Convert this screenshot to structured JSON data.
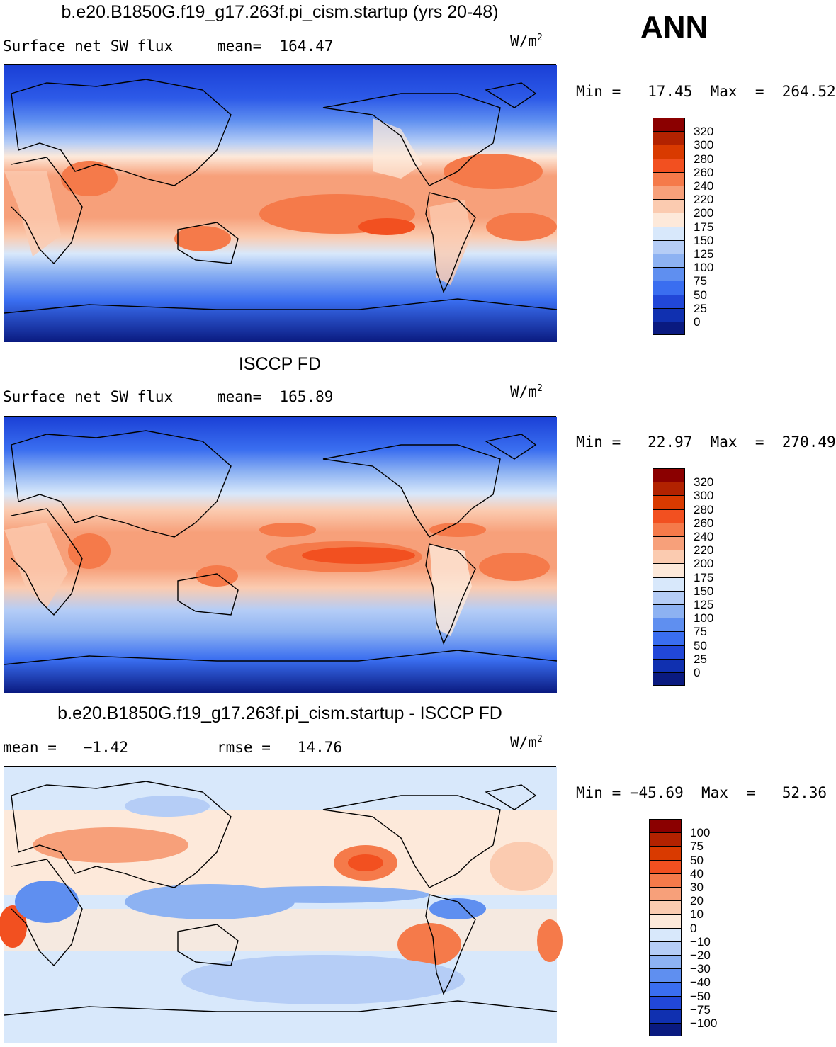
{
  "season": "ANN",
  "panels": [
    {
      "title": "b.e20.B1850G.f19_g17.263f.pi_cism.startup (yrs 20-48)",
      "left_text": "Surface net SW flux",
      "right_text": "mean=  164.47",
      "units_base": "W/m",
      "units_exp": "2",
      "minmax": "Min =   17.45  Max  =  264.52",
      "levels": [
        "320",
        "300",
        "280",
        "260",
        "240",
        "220",
        "200",
        "175",
        "150",
        "125",
        "100",
        "75",
        "50",
        "25",
        "0"
      ],
      "colors": [
        "#8b0000",
        "#b22200",
        "#d93a00",
        "#f25020",
        "#f57a4a",
        "#f7a07a",
        "#fbcbb0",
        "#fde9da",
        "#d8e8fb",
        "#b5cdf6",
        "#8db2f2",
        "#5f8ff0",
        "#3a6ef0",
        "#2147d8",
        "#1030b0",
        "#0a1a80"
      ]
    },
    {
      "title": "ISCCP FD",
      "left_text": "Surface net SW flux",
      "right_text": "mean=  165.89",
      "units_base": "W/m",
      "units_exp": "2",
      "minmax": "Min =   22.97  Max  =  270.49",
      "levels": [
        "320",
        "300",
        "280",
        "260",
        "240",
        "220",
        "200",
        "175",
        "150",
        "125",
        "100",
        "75",
        "50",
        "25",
        "0"
      ],
      "colors": [
        "#8b0000",
        "#b22200",
        "#d93a00",
        "#f25020",
        "#f57a4a",
        "#f7a07a",
        "#fbcbb0",
        "#fde9da",
        "#d8e8fb",
        "#b5cdf6",
        "#8db2f2",
        "#5f8ff0",
        "#3a6ef0",
        "#2147d8",
        "#1030b0",
        "#0a1a80"
      ]
    },
    {
      "title": "b.e20.B1850G.f19_g17.263f.pi_cism.startup - ISCCP FD",
      "left_text": "mean =   −1.42",
      "right_text": "rmse =   14.76",
      "units_base": "W/m",
      "units_exp": "2",
      "minmax": "Min = −45.69  Max  =   52.36",
      "levels": [
        "100",
        "75",
        "50",
        "40",
        "30",
        "20",
        "10",
        "0",
        "−10",
        "−20",
        "−30",
        "−40",
        "−50",
        "−75",
        "−100"
      ],
      "colors": [
        "#8b0000",
        "#b22200",
        "#d93a00",
        "#f25020",
        "#f57a4a",
        "#f7a07a",
        "#fbcbb0",
        "#fde9da",
        "#d8e8fb",
        "#b5cdf6",
        "#8db2f2",
        "#5f8ff0",
        "#3a6ef0",
        "#2147d8",
        "#1030b0",
        "#0a1a80"
      ]
    }
  ]
}
